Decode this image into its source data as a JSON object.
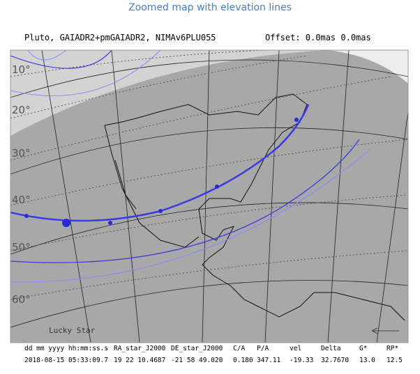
{
  "title": "Zoomed map with elevation lines",
  "header": {
    "object": "Pluto, GAIADR2+pmGAIADR2, NIMAv6PLU055",
    "offset": "Offset: 0.0mas 0.0mas"
  },
  "elevation_labels": [
    "10°",
    "20°",
    "30°",
    "40°",
    "50°",
    "60°"
  ],
  "credit": "Lucky Star",
  "table": {
    "columns": [
      "dd mm yyyy hh:mm:ss.s",
      "RA_star_J2000",
      "DE_star_J2000",
      "C/A",
      "P/A",
      "vel",
      "Delta",
      "G*",
      "RP*"
    ],
    "rows": [
      [
        "2018-08-15 05:33:09.7",
        "19 22 10.4687",
        "-21 58 49.020",
        "0.180",
        "347.11",
        "-19.33",
        "32.7670",
        "13.0",
        "12.5"
      ]
    ]
  }
}
